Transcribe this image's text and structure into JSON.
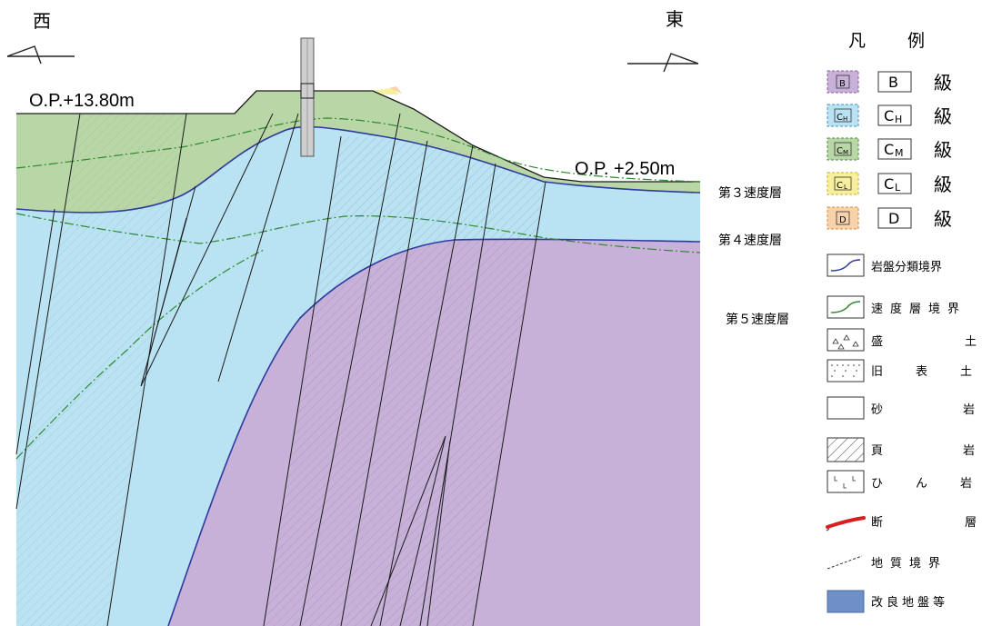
{
  "section": {
    "west_label": "西",
    "east_label": "東",
    "west_elevation": "O.P.+13.80m",
    "east_elevation": "O.P. +2.50m",
    "velocity_layers": [
      "第３速度層",
      "第４速度層",
      "第５速度層"
    ]
  },
  "legend": {
    "title_1": "凡",
    "title_2": "例",
    "grades": [
      {
        "code": "B",
        "sub": "",
        "suffix": "級",
        "color": "#c7b1d8",
        "border": "#8a5aa8"
      },
      {
        "code": "C",
        "sub": "H",
        "suffix": "級",
        "color": "#b9e2f2",
        "border": "#3d8fc0"
      },
      {
        "code": "C",
        "sub": "M",
        "suffix": "級",
        "color": "#b9d6a6",
        "border": "#4f8a3c"
      },
      {
        "code": "C",
        "sub": "L",
        "suffix": "級",
        "color": "#f7ef9c",
        "border": "#c6b22c"
      },
      {
        "code": "D",
        "sub": "",
        "suffix": "級",
        "color": "#f8d2a8",
        "border": "#d98a3a"
      }
    ],
    "symbols": [
      {
        "icon": "rock-class-boundary",
        "label": "岩盤分類境界"
      },
      {
        "icon": "velocity-layer-boundary",
        "label": "速度層境界"
      },
      {
        "icon": "fill",
        "label": "盛土"
      },
      {
        "icon": "old-topsoil",
        "label": "旧表土"
      },
      {
        "icon": "sandstone",
        "label": "砂岩"
      },
      {
        "icon": "shale",
        "label": "頁岩"
      },
      {
        "icon": "hornfels",
        "label": "ひん岩"
      },
      {
        "icon": "fault",
        "label": "断層"
      },
      {
        "icon": "geologic-boundary",
        "label": "地質境界"
      },
      {
        "icon": "improved-ground",
        "label": "改良地盤等"
      }
    ]
  },
  "colors": {
    "grade_b": "#c7b1d8",
    "grade_ch": "#b9e2f2",
    "grade_cm": "#b9d6a6",
    "rock_boundary": "#2d3a9e",
    "velocity_boundary": "#2f8a2f",
    "improved_ground": "#6f8fc8",
    "fault": "#d81e1e"
  }
}
